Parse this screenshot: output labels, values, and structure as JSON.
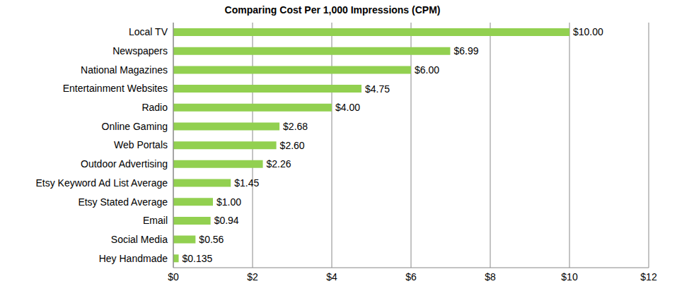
{
  "chart_data": {
    "type": "bar",
    "orientation": "horizontal",
    "title": "Comparing Cost Per 1,000 Impressions (CPM)",
    "categories": [
      "Local TV",
      "Newspapers",
      "National Magazines",
      "Entertainment Websites",
      "Radio",
      "Online Gaming",
      "Web Portals",
      "Outdoor Advertising",
      "Etsy Keyword Ad List Average",
      "Etsy Stated Average",
      "Email",
      "Social Media",
      "Hey Handmade"
    ],
    "values": [
      10.0,
      6.99,
      6.0,
      4.75,
      4.0,
      2.68,
      2.6,
      2.26,
      1.45,
      1.0,
      0.94,
      0.56,
      0.135
    ],
    "value_labels": [
      "$10.00",
      "$6.99",
      "$6.00",
      "$4.75",
      "$4.00",
      "$2.68",
      "$2.60",
      "$2.26",
      "$1.45",
      "$1.00",
      "$0.94",
      "$0.56",
      "$0.135"
    ],
    "data_labels": true,
    "color": "#92d050",
    "xlim": [
      0,
      12
    ],
    "xticks": [
      {
        "value": 0,
        "label": "$0"
      },
      {
        "value": 2,
        "label": "$2"
      },
      {
        "value": 4,
        "label": "$4"
      },
      {
        "value": 6,
        "label": "$6"
      },
      {
        "value": 8,
        "label": "$8"
      },
      {
        "value": 10,
        "label": "$10"
      },
      {
        "value": 12,
        "label": "$12"
      }
    ],
    "grid": true
  }
}
